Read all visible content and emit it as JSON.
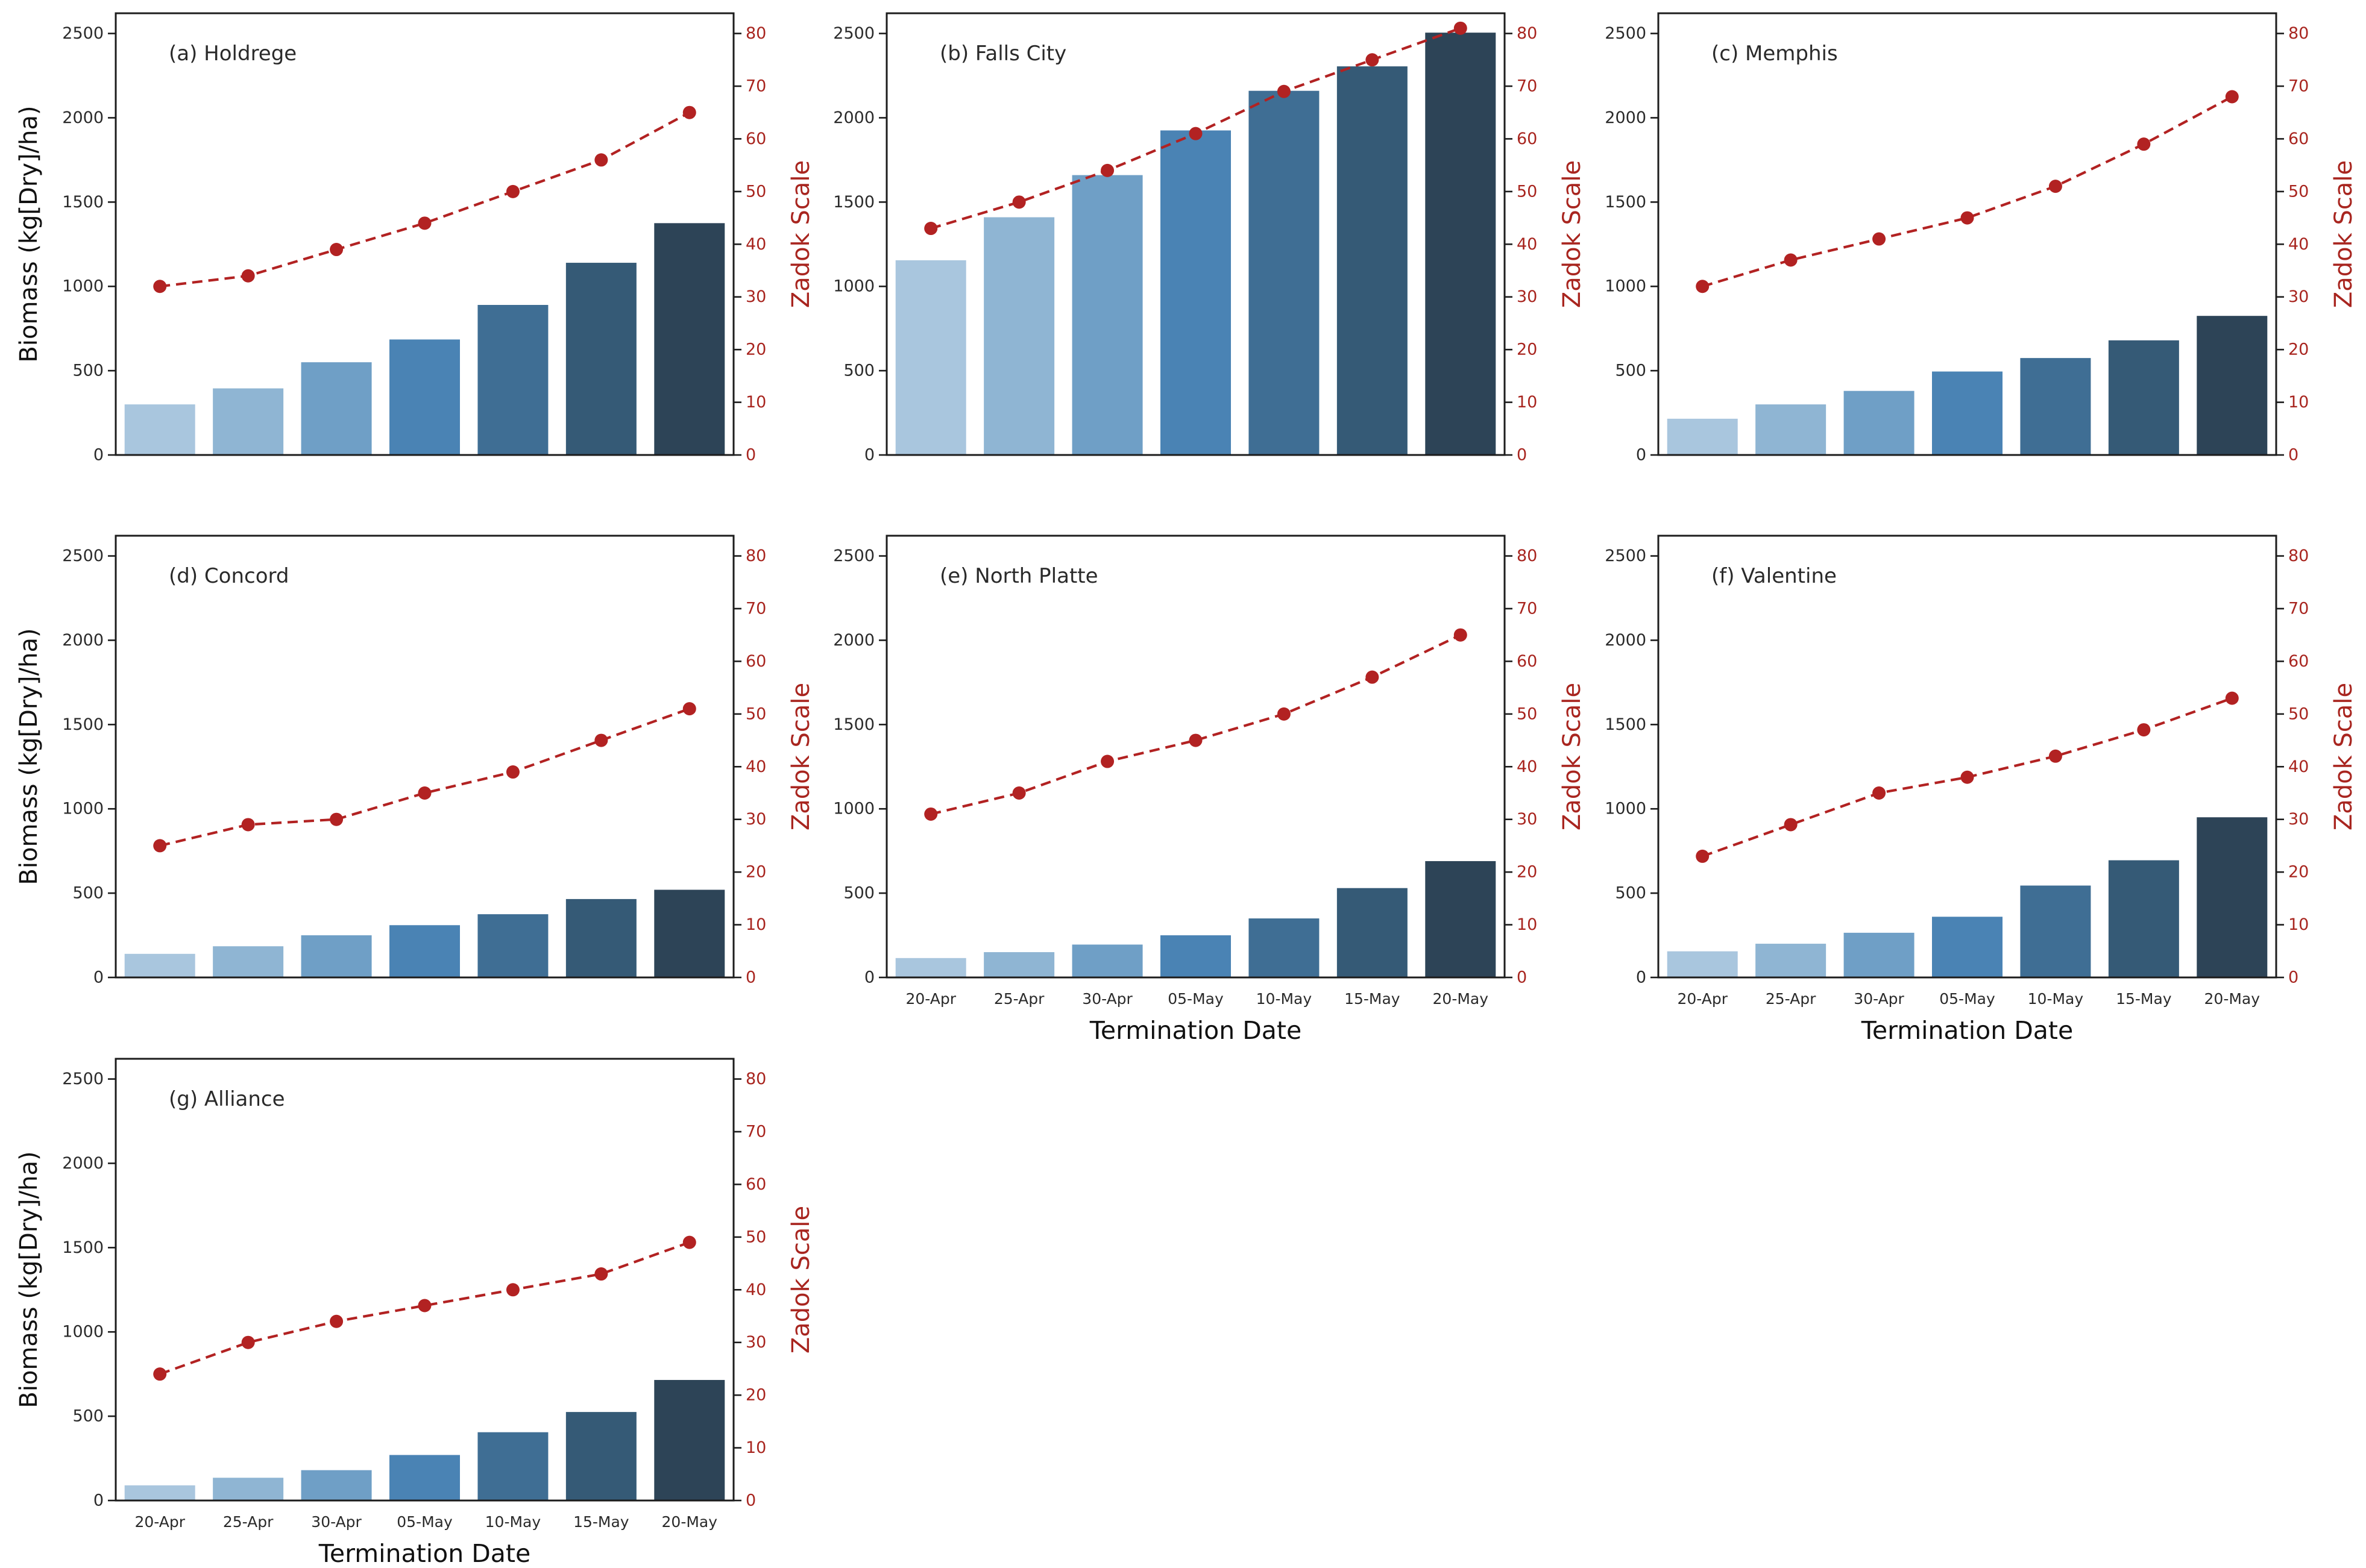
{
  "figure": {
    "background": "#ffffff",
    "shared": {
      "xlabel": "Termination Date",
      "ylabel_left": "Biomass (kg[Dry]/ha)",
      "ylabel_right": "Zadok Scale",
      "x_categories": [
        "20-Apr",
        "25-Apr",
        "30-Apr",
        "05-May",
        "10-May",
        "15-May",
        "20-May"
      ],
      "left_ticks": [
        "0",
        "500",
        "1000",
        "1500",
        "2000",
        "2500"
      ],
      "left_tick_values": [
        0,
        500,
        1000,
        1500,
        2000,
        2500
      ],
      "right_ticks": [
        "0",
        "10",
        "20",
        "30",
        "40",
        "50",
        "60",
        "70",
        "80"
      ],
      "right_tick_values": [
        0,
        10,
        20,
        30,
        40,
        50,
        60,
        70,
        80
      ],
      "left_ylim": [
        0,
        2620
      ],
      "right_ylim": [
        0,
        83.84
      ],
      "bar_colors": [
        "#a9c6de",
        "#8fb5d3",
        "#6f9fc6",
        "#4a83b4",
        "#3f6e94",
        "#355a76",
        "#2d4457"
      ],
      "line_color": "#b22222",
      "red_text_color": "#a8251f",
      "spine_color": "#1c1c1c",
      "tick_text_color": "#2a2a2a",
      "grid": false,
      "legend": "none"
    }
  },
  "chart_data": [
    {
      "type": "bar",
      "title": "(a) Holdrege",
      "categories": [
        "20-Apr",
        "25-Apr",
        "30-Apr",
        "05-May",
        "10-May",
        "15-May",
        "20-May"
      ],
      "series": [
        {
          "name": "Biomass (kg[Dry]/ha)",
          "type": "bar",
          "axis": "left",
          "values": [
            300,
            395,
            550,
            685,
            890,
            1140,
            1375
          ]
        },
        {
          "name": "Zadok Scale",
          "type": "line",
          "axis": "right",
          "values": [
            32,
            34,
            39,
            44,
            50,
            56,
            65
          ]
        }
      ],
      "xlabel": "",
      "ylabel": "Biomass (kg[Dry]/ha)",
      "ylabel_right": "Zadok Scale",
      "ylim": [
        0,
        2620
      ],
      "ylim_right": [
        0,
        83.84
      ],
      "row": 0,
      "col": 0,
      "show_left_label": true,
      "show_x": false
    },
    {
      "type": "bar",
      "title": "(b) Falls City",
      "categories": [
        "20-Apr",
        "25-Apr",
        "30-Apr",
        "05-May",
        "10-May",
        "15-May",
        "20-May"
      ],
      "series": [
        {
          "name": "Biomass (kg[Dry]/ha)",
          "type": "bar",
          "axis": "left",
          "values": [
            1155,
            1410,
            1660,
            1925,
            2160,
            2305,
            2505
          ]
        },
        {
          "name": "Zadok Scale",
          "type": "line",
          "axis": "right",
          "values": [
            43,
            48,
            54,
            61,
            69,
            75,
            81
          ]
        }
      ],
      "xlabel": "",
      "ylabel": "",
      "ylabel_right": "Zadok Scale",
      "ylim": [
        0,
        2620
      ],
      "ylim_right": [
        0,
        83.84
      ],
      "row": 0,
      "col": 1,
      "show_left_label": false,
      "show_x": false
    },
    {
      "type": "bar",
      "title": "(c) Memphis",
      "categories": [
        "20-Apr",
        "25-Apr",
        "30-Apr",
        "05-May",
        "10-May",
        "15-May",
        "20-May"
      ],
      "series": [
        {
          "name": "Biomass (kg[Dry]/ha)",
          "type": "bar",
          "axis": "left",
          "values": [
            215,
            300,
            380,
            495,
            575,
            680,
            825
          ]
        },
        {
          "name": "Zadok Scale",
          "type": "line",
          "axis": "right",
          "values": [
            32,
            37,
            41,
            45,
            51,
            59,
            68
          ]
        }
      ],
      "xlabel": "",
      "ylabel": "",
      "ylabel_right": "Zadok Scale",
      "ylim": [
        0,
        2620
      ],
      "ylim_right": [
        0,
        83.84
      ],
      "row": 0,
      "col": 2,
      "show_left_label": false,
      "show_x": false
    },
    {
      "type": "bar",
      "title": "(d) Concord",
      "categories": [
        "20-Apr",
        "25-Apr",
        "30-Apr",
        "05-May",
        "10-May",
        "15-May",
        "20-May"
      ],
      "series": [
        {
          "name": "Biomass (kg[Dry]/ha)",
          "type": "bar",
          "axis": "left",
          "values": [
            140,
            185,
            250,
            310,
            375,
            465,
            520
          ]
        },
        {
          "name": "Zadok Scale",
          "type": "line",
          "axis": "right",
          "values": [
            25,
            29,
            30,
            35,
            39,
            45,
            51
          ]
        }
      ],
      "xlabel": "",
      "ylabel": "Biomass (kg[Dry]/ha)",
      "ylabel_right": "Zadok Scale",
      "ylim": [
        0,
        2620
      ],
      "ylim_right": [
        0,
        83.84
      ],
      "row": 1,
      "col": 0,
      "show_left_label": true,
      "show_x": false
    },
    {
      "type": "bar",
      "title": "(e) North Platte",
      "categories": [
        "20-Apr",
        "25-Apr",
        "30-Apr",
        "05-May",
        "10-May",
        "15-May",
        "20-May"
      ],
      "series": [
        {
          "name": "Biomass (kg[Dry]/ha)",
          "type": "bar",
          "axis": "left",
          "values": [
            115,
            150,
            195,
            250,
            350,
            530,
            690
          ]
        },
        {
          "name": "Zadok Scale",
          "type": "line",
          "axis": "right",
          "values": [
            31,
            35,
            41,
            45,
            50,
            57,
            65
          ]
        }
      ],
      "xlabel": "Termination Date",
      "ylabel": "",
      "ylabel_right": "Zadok Scale",
      "ylim": [
        0,
        2620
      ],
      "ylim_right": [
        0,
        83.84
      ],
      "row": 1,
      "col": 1,
      "show_left_label": false,
      "show_x": true
    },
    {
      "type": "bar",
      "title": "(f) Valentine",
      "categories": [
        "20-Apr",
        "25-Apr",
        "30-Apr",
        "05-May",
        "10-May",
        "15-May",
        "20-May"
      ],
      "series": [
        {
          "name": "Biomass (kg[Dry]/ha)",
          "type": "bar",
          "axis": "left",
          "values": [
            155,
            200,
            265,
            360,
            545,
            695,
            950
          ]
        },
        {
          "name": "Zadok Scale",
          "type": "line",
          "axis": "right",
          "values": [
            23,
            29,
            35,
            38,
            42,
            47,
            53
          ]
        }
      ],
      "xlabel": "Termination Date",
      "ylabel": "",
      "ylabel_right": "Zadok Scale",
      "ylim": [
        0,
        2620
      ],
      "ylim_right": [
        0,
        83.84
      ],
      "row": 1,
      "col": 2,
      "show_left_label": false,
      "show_x": true
    },
    {
      "type": "bar",
      "title": "(g) Alliance",
      "categories": [
        "20-Apr",
        "25-Apr",
        "30-Apr",
        "05-May",
        "10-May",
        "15-May",
        "20-May"
      ],
      "series": [
        {
          "name": "Biomass (kg[Dry]/ha)",
          "type": "bar",
          "axis": "left",
          "values": [
            90,
            135,
            180,
            270,
            405,
            525,
            715
          ]
        },
        {
          "name": "Zadok Scale",
          "type": "line",
          "axis": "right",
          "values": [
            24,
            30,
            34,
            37,
            40,
            43,
            49
          ]
        }
      ],
      "xlabel": "Termination Date",
      "ylabel": "Biomass (kg[Dry]/ha)",
      "ylabel_right": "Zadok Scale",
      "ylim": [
        0,
        2620
      ],
      "ylim_right": [
        0,
        83.84
      ],
      "row": 2,
      "col": 0,
      "show_left_label": true,
      "show_x": true
    }
  ]
}
